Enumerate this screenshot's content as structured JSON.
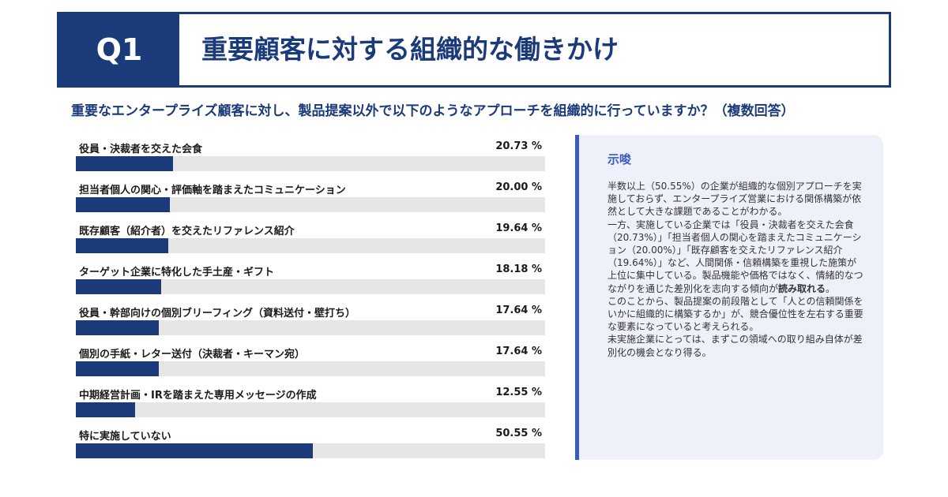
{
  "header": {
    "q_label": "Q1",
    "title": "重要顧客に対する組織的な働きかけ"
  },
  "question": "重要なエンタープライズ顧客に対し、製品提案以外で以下のようなアプローチを組織的に行っていますか？（複数回答）",
  "colors": {
    "accent": "#1b3a7a",
    "track": "#e6e6e6",
    "insight_bg": "#eef1fa",
    "insight_border": "#3a5cc0"
  },
  "chart_data": {
    "type": "bar",
    "orientation": "horizontal",
    "unit": "%",
    "xlim": [
      0,
      100
    ],
    "grid": false,
    "categories": [
      "役員・決裁者を交えた会食",
      "担当者個人の関心・評価軸を踏まえたコミュニケーション",
      "既存顧客（紹介者）を交えたリファレンス紹介",
      "ターゲット企業に特化した手土産・ギフト",
      "役員・幹部向けの個別ブリーフィング（資料送付・壁打ち）",
      "個別の手紙・レター送付（決裁者・キーマン宛）",
      "中期経営計画・IRを踏まえた専用メッセージの作成",
      "特に実施していない"
    ],
    "values": [
      20.73,
      20.0,
      19.64,
      18.18,
      17.64,
      17.64,
      12.55,
      50.55
    ],
    "value_labels": [
      "20.73 %",
      "20.00 %",
      "19.64 %",
      "18.18 %",
      "17.64 %",
      "17.64 %",
      "12.55 %",
      "50.55 %"
    ]
  },
  "insight": {
    "title": "示唆",
    "p1": "半数以上（50.55%）の企業が組織的な個別アプローチを実施しておらず、エンタープライズ営業における関係構築が依然として大きな課題であることがわかる。",
    "p2_before": "一方、実施している企業では「役員・決裁者を交えた会食（20.73%）」「担当者個人の関心を踏まえたコミュニケーション（20.00%）」「既存顧客を交えたリファレンス紹介（19.64%）」など、人間関係・信頼構築を重視した施策が上位に集中している。製品機能や価格ではなく、情緒的なつながりを通じた差別化を志向する傾向が",
    "p2_bold": "読み取れる",
    "p2_after": "。",
    "p3": "このことから、製品提案の前段階として「人との信頼関係をいかに組織的に構築するか」が、競合優位性を左右する重要な要素になっていると考えられる。",
    "p4": "未実施企業にとっては、まずこの領域への取り組み自体が差別化の機会となり得る。"
  }
}
